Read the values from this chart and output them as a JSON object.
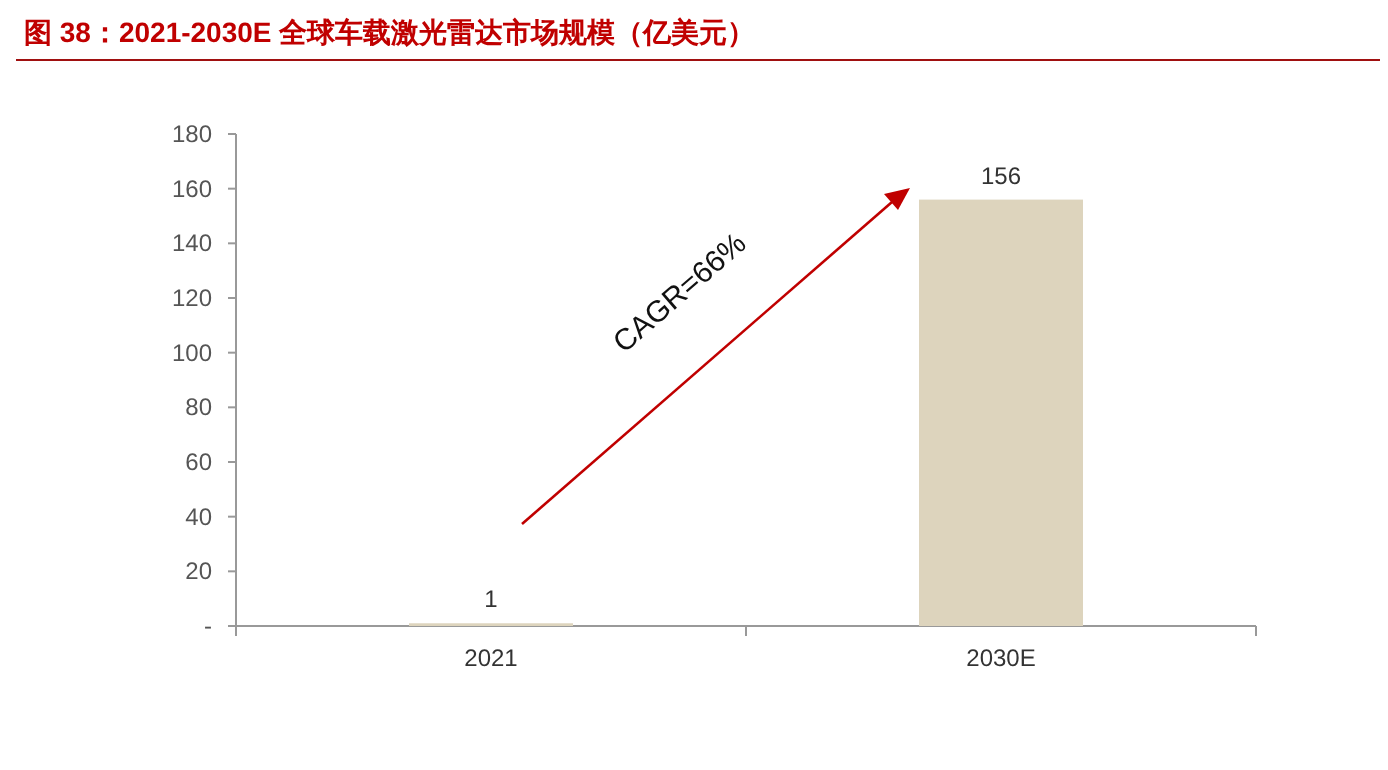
{
  "chart_data": {
    "type": "bar",
    "title": "图 38：2021-2030E 全球车载激光雷达市场规模（亿美元）",
    "categories": [
      "2021",
      "2030E"
    ],
    "values": [
      1,
      156
    ],
    "color": "#ddd4bd",
    "ylim": [
      0,
      180
    ],
    "yticks": [
      {
        "value": 0,
        "label": "-"
      },
      20,
      40,
      60,
      80,
      100,
      120,
      140,
      160,
      180
    ],
    "data_labels": true,
    "annotations": [
      "CAGR=66%"
    ]
  }
}
